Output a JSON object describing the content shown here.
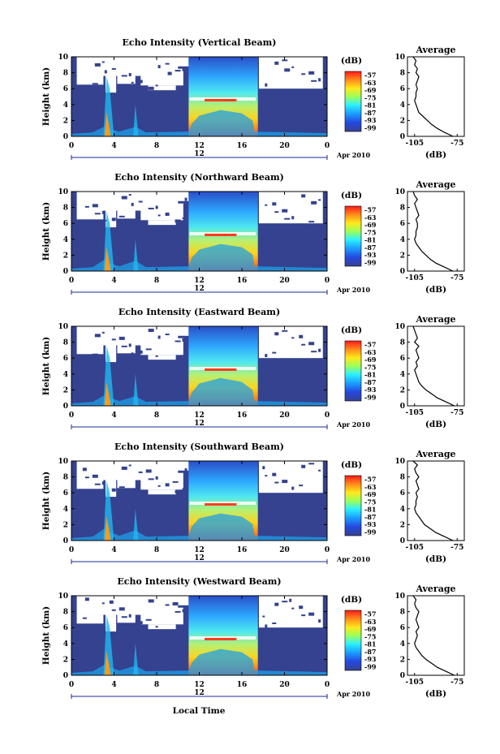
{
  "chart_data": [
    {
      "type": "heatmap",
      "title": "Echo Intensity (Vertical Beam)",
      "avg_profile": [
        [
          -78,
          0
        ],
        [
          -84,
          0.5
        ],
        [
          -89,
          1
        ],
        [
          -93,
          1.5
        ],
        [
          -96,
          2
        ],
        [
          -99,
          2.5
        ],
        [
          -102,
          3
        ],
        [
          -103,
          3.5
        ],
        [
          -104,
          4
        ],
        [
          -105,
          4.5
        ],
        [
          -104,
          5
        ],
        [
          -104,
          5.5
        ],
        [
          -103,
          6
        ],
        [
          -104,
          6.5
        ],
        [
          -103,
          7
        ],
        [
          -102,
          7.5
        ],
        [
          -104,
          8
        ],
        [
          -103,
          8.5
        ],
        [
          -105,
          9
        ],
        [
          -104,
          9.5
        ],
        [
          -106,
          10
        ]
      ],
      "panel_profile": [
        [
          0,
          0.3
        ],
        [
          2,
          0.5
        ],
        [
          3.2,
          1.3
        ],
        [
          3.6,
          0.9
        ],
        [
          4.5,
          0.6
        ],
        [
          6,
          1.2
        ],
        [
          7,
          0.5
        ],
        [
          11,
          0.6
        ],
        [
          11.3,
          1.6
        ],
        [
          12,
          2.6
        ],
        [
          14,
          3.3
        ],
        [
          16,
          2.9
        ],
        [
          17,
          2.0
        ],
        [
          17.2,
          0.6
        ],
        [
          24,
          0.4
        ]
      ]
    },
    {
      "type": "heatmap",
      "title": "Echo Intensity (Northward Beam)",
      "avg_profile": [
        [
          -78,
          0
        ],
        [
          -84,
          0.5
        ],
        [
          -90,
          1
        ],
        [
          -94,
          1.5
        ],
        [
          -97,
          2
        ],
        [
          -100,
          2.5
        ],
        [
          -102,
          3
        ],
        [
          -104,
          3.5
        ],
        [
          -105,
          4
        ],
        [
          -104,
          4.5
        ],
        [
          -104,
          5
        ],
        [
          -103,
          5.5
        ],
        [
          -103,
          6
        ],
        [
          -104,
          6.5
        ],
        [
          -102,
          7
        ],
        [
          -103,
          7.5
        ],
        [
          -104,
          8
        ],
        [
          -105,
          8.5
        ],
        [
          -103,
          9
        ],
        [
          -105,
          9.5
        ],
        [
          -106,
          10
        ]
      ],
      "panel_profile": [
        [
          0,
          0.3
        ],
        [
          2,
          0.5
        ],
        [
          3.2,
          1.5
        ],
        [
          3.6,
          1.0
        ],
        [
          4.5,
          0.6
        ],
        [
          6,
          1.3
        ],
        [
          7,
          0.5
        ],
        [
          11,
          0.6
        ],
        [
          11.3,
          1.7
        ],
        [
          12,
          2.7
        ],
        [
          14,
          3.4
        ],
        [
          16,
          3.0
        ],
        [
          17,
          2.1
        ],
        [
          17.2,
          0.6
        ],
        [
          24,
          0.4
        ]
      ]
    },
    {
      "type": "heatmap",
      "title": "Echo Intensity (Eastward Beam)",
      "avg_profile": [
        [
          -77,
          0
        ],
        [
          -83,
          0.5
        ],
        [
          -89,
          1
        ],
        [
          -93,
          1.5
        ],
        [
          -97,
          2
        ],
        [
          -100,
          2.5
        ],
        [
          -102,
          3
        ],
        [
          -103,
          3.5
        ],
        [
          -104,
          4
        ],
        [
          -105,
          4.5
        ],
        [
          -103,
          5
        ],
        [
          -104,
          5.5
        ],
        [
          -102,
          6
        ],
        [
          -103,
          6.5
        ],
        [
          -104,
          7
        ],
        [
          -102,
          7.5
        ],
        [
          -105,
          8
        ],
        [
          -103,
          8.5
        ],
        [
          -104,
          9
        ],
        [
          -105,
          9.5
        ],
        [
          -106,
          10
        ]
      ],
      "panel_profile": [
        [
          0,
          0.3
        ],
        [
          2,
          0.5
        ],
        [
          3.2,
          1.4
        ],
        [
          3.6,
          1.0
        ],
        [
          4.5,
          0.6
        ],
        [
          6,
          1.2
        ],
        [
          7,
          0.5
        ],
        [
          11,
          0.6
        ],
        [
          11.3,
          1.7
        ],
        [
          12,
          2.8
        ],
        [
          14,
          3.5
        ],
        [
          16,
          3.0
        ],
        [
          17,
          2.0
        ],
        [
          17.2,
          0.6
        ],
        [
          24,
          0.4
        ]
      ]
    },
    {
      "type": "heatmap",
      "title": "Echo Intensity (Southward Beam)",
      "avg_profile": [
        [
          -78,
          0
        ],
        [
          -84,
          0.5
        ],
        [
          -90,
          1
        ],
        [
          -94,
          1.5
        ],
        [
          -98,
          2
        ],
        [
          -100,
          2.5
        ],
        [
          -102,
          3
        ],
        [
          -104,
          3.5
        ],
        [
          -105,
          4
        ],
        [
          -104,
          4.5
        ],
        [
          -104,
          5
        ],
        [
          -103,
          5.5
        ],
        [
          -104,
          6
        ],
        [
          -102,
          6.5
        ],
        [
          -103,
          7
        ],
        [
          -104,
          7.5
        ],
        [
          -102,
          8
        ],
        [
          -104,
          8.5
        ],
        [
          -105,
          9
        ],
        [
          -103,
          9.5
        ],
        [
          -106,
          10
        ]
      ],
      "panel_profile": [
        [
          0,
          0.3
        ],
        [
          2,
          0.5
        ],
        [
          3.2,
          1.6
        ],
        [
          3.6,
          1.1
        ],
        [
          4.5,
          0.6
        ],
        [
          6,
          1.3
        ],
        [
          7,
          0.5
        ],
        [
          11,
          0.6
        ],
        [
          11.3,
          1.8
        ],
        [
          12,
          2.8
        ],
        [
          14,
          3.4
        ],
        [
          16,
          3.0
        ],
        [
          17,
          2.1
        ],
        [
          17.2,
          0.6
        ],
        [
          24,
          0.4
        ]
      ]
    },
    {
      "type": "heatmap",
      "title": "Echo Intensity (Westward Beam)",
      "avg_profile": [
        [
          -77,
          0
        ],
        [
          -83,
          0.5
        ],
        [
          -89,
          1
        ],
        [
          -93,
          1.5
        ],
        [
          -97,
          2
        ],
        [
          -100,
          2.5
        ],
        [
          -102,
          3
        ],
        [
          -104,
          3.5
        ],
        [
          -105,
          4
        ],
        [
          -104,
          4.5
        ],
        [
          -103,
          5
        ],
        [
          -104,
          5.5
        ],
        [
          -102,
          6
        ],
        [
          -103,
          6.5
        ],
        [
          -104,
          7
        ],
        [
          -103,
          7.5
        ],
        [
          -102,
          8
        ],
        [
          -104,
          8.5
        ],
        [
          -105,
          9
        ],
        [
          -104,
          9.5
        ],
        [
          -106,
          10
        ]
      ],
      "panel_profile": [
        [
          0,
          0.3
        ],
        [
          2,
          0.5
        ],
        [
          3.2,
          1.4
        ],
        [
          3.6,
          1.0
        ],
        [
          4.5,
          0.6
        ],
        [
          6,
          1.2
        ],
        [
          7,
          0.5
        ],
        [
          11,
          0.6
        ],
        [
          11.3,
          1.6
        ],
        [
          12,
          2.6
        ],
        [
          14,
          3.3
        ],
        [
          16,
          2.9
        ],
        [
          17,
          2.0
        ],
        [
          17.2,
          0.6
        ],
        [
          24,
          0.4
        ]
      ]
    }
  ],
  "axes": {
    "ylabel": "Height (km)",
    "y_ticks": [
      "0",
      "2",
      "4",
      "6",
      "8",
      "10"
    ],
    "ylim": [
      0,
      10
    ],
    "x_ticks": [
      "0",
      "4",
      "8",
      "12",
      "16",
      "20",
      "0"
    ],
    "xlim": [
      0,
      24
    ],
    "date_marker": "12",
    "date_suffix": "Apr 2010",
    "xlabel": "Local Time"
  },
  "colorbar": {
    "unit": "(dB)",
    "ticks": [
      "-57",
      "-63",
      "-69",
      "-75",
      "-81",
      "-87",
      "-93",
      "-99"
    ],
    "colors": [
      "#ff1a1a",
      "#ff8a1a",
      "#ffe81a",
      "#9cff5a",
      "#2cf0ff",
      "#1aa0ff",
      "#2448e0",
      "#36428f"
    ]
  },
  "average_panel": {
    "title": "Average",
    "xlabel": "(dB)",
    "x_ticks": [
      "-105",
      "-75"
    ],
    "xlim": [
      -110,
      -70
    ],
    "y_ticks": [
      "0",
      "2",
      "4",
      "6",
      "8",
      "10"
    ]
  }
}
